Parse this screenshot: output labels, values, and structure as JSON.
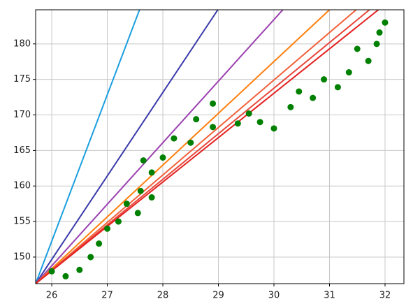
{
  "chart_data": {
    "type": "scatter",
    "xlim": [
      25.71,
      32.34
    ],
    "ylim": [
      146.26,
      184.8
    ],
    "xticks": [
      26,
      27,
      28,
      29,
      30,
      31,
      32
    ],
    "yticks": [
      150,
      155,
      160,
      165,
      170,
      175,
      180
    ],
    "grid": true,
    "series": [
      {
        "type": "line",
        "color": "#1a9fe0",
        "x": [
          25.71,
          27.58
        ],
        "values": [
          146.26,
          184.8
        ]
      },
      {
        "type": "line",
        "color": "#3a3aaa",
        "x": [
          25.71,
          28.99
        ],
        "values": [
          146.26,
          184.8
        ]
      },
      {
        "type": "line",
        "color": "#9b40b0",
        "x": [
          25.71,
          30.16
        ],
        "values": [
          146.26,
          184.8
        ]
      },
      {
        "type": "line",
        "color": "#ff7f0e",
        "x": [
          25.71,
          31.0
        ],
        "values": [
          146.26,
          184.8
        ]
      },
      {
        "type": "line",
        "color": "#f2603a",
        "x": [
          25.71,
          31.48
        ],
        "values": [
          146.26,
          184.8
        ]
      },
      {
        "type": "line",
        "color": "#e8453a",
        "x": [
          25.71,
          31.72
        ],
        "values": [
          146.26,
          184.8
        ]
      },
      {
        "type": "line",
        "color": "#e32020",
        "x": [
          25.71,
          31.88
        ],
        "values": [
          146.26,
          184.8
        ]
      },
      {
        "type": "scatter",
        "color": "#008000",
        "x": [
          26.0,
          26.25,
          26.5,
          26.7,
          26.85,
          27.0,
          27.2,
          27.35,
          27.55,
          27.6,
          27.65,
          27.8,
          27.8,
          28.0,
          28.2,
          28.5,
          28.6,
          28.9,
          28.9,
          29.35,
          29.55,
          29.75,
          30.0,
          30.3,
          30.45,
          30.7,
          30.9,
          31.15,
          31.35,
          31.5,
          31.7,
          31.85,
          31.9,
          32.0
        ],
        "values": [
          148.0,
          147.3,
          148.2,
          150.0,
          151.9,
          154.0,
          155.0,
          157.5,
          156.2,
          159.3,
          163.6,
          161.9,
          158.4,
          164.0,
          166.7,
          166.1,
          169.4,
          171.6,
          168.3,
          168.8,
          170.2,
          169.0,
          168.1,
          171.1,
          173.3,
          172.4,
          175.0,
          173.9,
          176.0,
          179.3,
          177.6,
          180.0,
          181.6,
          183.0
        ]
      }
    ]
  }
}
